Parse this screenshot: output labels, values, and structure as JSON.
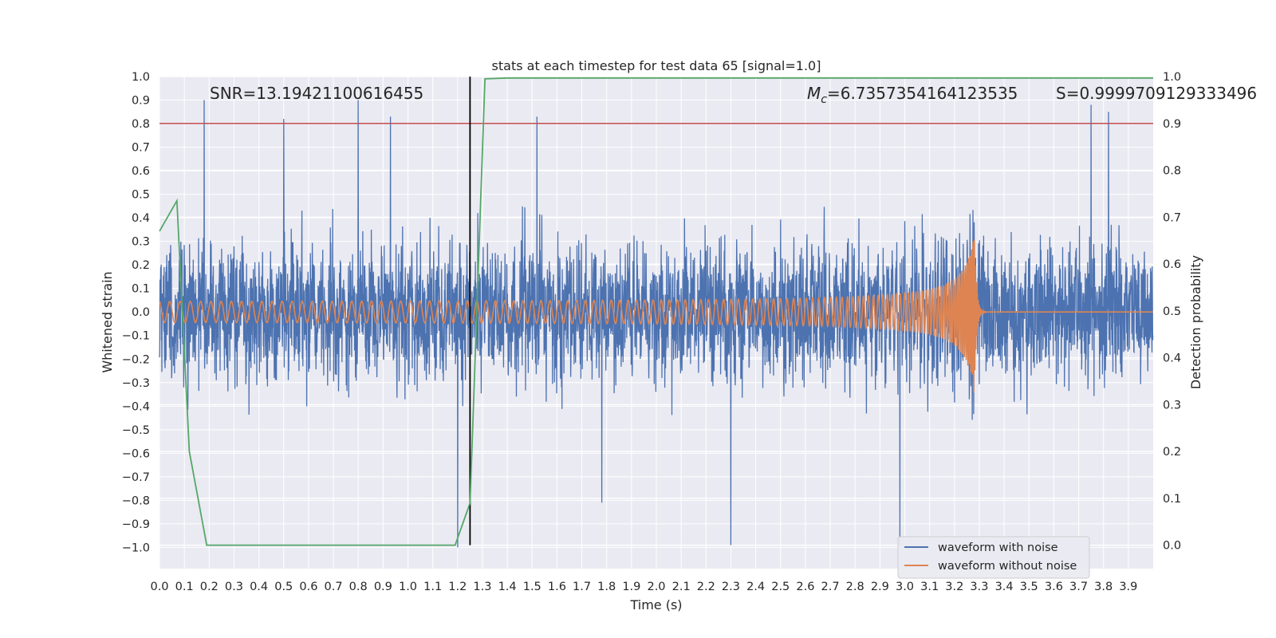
{
  "chart_data": {
    "type": "line",
    "title": "stats at each timestep for test data 65 [signal=1.0]",
    "xlabel": "Time (s)",
    "ylabel": "Whitened strain",
    "y2label": "Detection probability",
    "xlim": [
      0.0,
      4.0
    ],
    "ylim": [
      -1.09,
      1.0
    ],
    "y2lim": [
      -0.05,
      1.0
    ],
    "xticks": [
      "0.0",
      "0.1",
      "0.2",
      "0.3",
      "0.4",
      "0.5",
      "0.6",
      "0.7",
      "0.8",
      "0.9",
      "1.0",
      "1.1",
      "1.2",
      "1.3",
      "1.4",
      "1.5",
      "1.6",
      "1.7",
      "1.8",
      "1.9",
      "2.0",
      "2.1",
      "2.2",
      "2.3",
      "2.4",
      "2.5",
      "2.6",
      "2.7",
      "2.8",
      "2.9",
      "3.0",
      "3.1",
      "3.2",
      "3.3",
      "3.4",
      "3.5",
      "3.6",
      "3.7",
      "3.8",
      "3.9"
    ],
    "yticks": [
      "1.0",
      "0.9",
      "0.8",
      "0.7",
      "0.6",
      "0.5",
      "0.4",
      "0.3",
      "0.2",
      "0.1",
      "0.0",
      "−0.1",
      "−0.2",
      "−0.3",
      "−0.4",
      "−0.5",
      "−0.6",
      "−0.7",
      "−0.8",
      "−0.9",
      "−1.0"
    ],
    "y2ticks": [
      "1.0",
      "0.9",
      "0.8",
      "0.7",
      "0.6",
      "0.5",
      "0.4",
      "0.3",
      "0.2",
      "0.1",
      "0.0"
    ],
    "annotations": {
      "snr": "SNR=13.19421100616455",
      "mc_symbol": "M",
      "mc_subscript": "c",
      "mc_value": "=6.7357354164123535",
      "s": "S=0.9999709129333496"
    },
    "series": [
      {
        "name": "waveform with noise",
        "color": "#4c72b0",
        "axis": "left",
        "description": "white noise, std ~0.25, peaks to about ±0.9",
        "peaks": [
          {
            "t": 0.18,
            "v": 0.9
          },
          {
            "t": 0.5,
            "v": 0.82
          },
          {
            "t": 0.8,
            "v": 0.9
          },
          {
            "t": 0.93,
            "v": 0.83
          },
          {
            "t": 1.2,
            "v": -1.0
          },
          {
            "t": 1.52,
            "v": 0.83
          },
          {
            "t": 1.78,
            "v": -0.81
          },
          {
            "t": 2.3,
            "v": -0.99
          },
          {
            "t": 2.98,
            "v": -0.99
          },
          {
            "t": 3.75,
            "v": 0.88
          },
          {
            "t": 3.82,
            "v": 0.85
          }
        ]
      },
      {
        "name": "waveform without noise",
        "color": "#dd8452",
        "axis": "left",
        "description": "chirp: amplitude grows from 0.04 to 0.37 at merger t=3.28, then rings down to 0",
        "merger_time": 3.28,
        "start_amplitude": 0.04,
        "peak_amplitude": 0.37
      },
      {
        "name": "detection probability",
        "color": "#55a868",
        "axis": "right",
        "points": [
          [
            0.0,
            0.67
          ],
          [
            0.07,
            0.735
          ],
          [
            0.12,
            0.2
          ],
          [
            0.19,
            0.0
          ],
          [
            1.19,
            0.0
          ],
          [
            1.25,
            0.09
          ],
          [
            1.31,
            0.995
          ],
          [
            1.4,
            0.997
          ],
          [
            4.0,
            0.997
          ]
        ]
      },
      {
        "name": "threshold",
        "color": "#c44e52",
        "axis": "right",
        "value": 0.9
      },
      {
        "name": "detection time",
        "color": "#000000",
        "type": "vline",
        "x": 1.25,
        "y2range": [
          0.0,
          1.0
        ]
      }
    ],
    "legend": {
      "position": "lower-right",
      "entries": [
        "waveform with noise",
        "waveform without noise"
      ]
    }
  }
}
